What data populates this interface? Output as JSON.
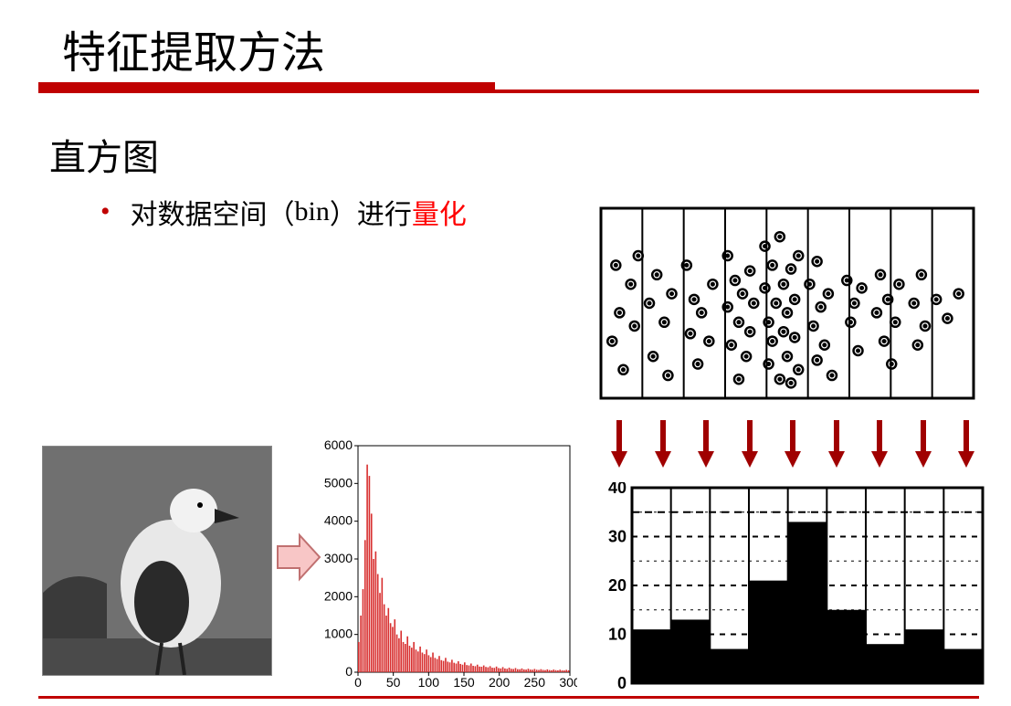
{
  "title": "特征提取方法",
  "subheading": "直方图",
  "bullet": {
    "pre": "对数据空间（",
    "bin": "bin",
    "mid": "）进行",
    "highlight": "量化"
  },
  "colors": {
    "accent": "#c00000",
    "text": "#000000",
    "highlight": "#ff0000",
    "hist_bars": "#d83030",
    "bar_fill": "#000000",
    "grid": "#808080",
    "bg": "#ffffff"
  },
  "red_histogram": {
    "type": "histogram",
    "xlim": [
      0,
      300
    ],
    "ylim": [
      0,
      6000
    ],
    "xtick_step": 50,
    "ytick_step": 1000,
    "label_fontsize": 14,
    "bar_color": "#d83030",
    "bg": "#ffffff",
    "border_color": "#000000",
    "values": [
      800,
      1500,
      2200,
      3500,
      5500,
      5200,
      4200,
      3000,
      3200,
      2600,
      2100,
      2500,
      1800,
      1500,
      1700,
      1300,
      1200,
      1400,
      1000,
      900,
      1100,
      800,
      750,
      950,
      700,
      650,
      800,
      600,
      550,
      680,
      520,
      480,
      600,
      450,
      400,
      520,
      380,
      350,
      430,
      320,
      300,
      380,
      280,
      260,
      330,
      250,
      230,
      290,
      220,
      200,
      260,
      190,
      180,
      230,
      170,
      160,
      200,
      150,
      145,
      180,
      140,
      130,
      160,
      120,
      115,
      150,
      110,
      100,
      135,
      100,
      90,
      120,
      90,
      85,
      110,
      80,
      78,
      100,
      75,
      70,
      92,
      70,
      65,
      86,
      65,
      60,
      80,
      62,
      56,
      75,
      58,
      52,
      70,
      55,
      50,
      66,
      52,
      48,
      62,
      50
    ]
  },
  "scatter_bins": {
    "type": "scatter-binned",
    "bins": 9,
    "border_color": "#000000",
    "bg": "#ffffff",
    "point_color": "#000000",
    "point_radius": 5,
    "points": [
      [
        0.04,
        0.3
      ],
      [
        0.05,
        0.55
      ],
      [
        0.03,
        0.7
      ],
      [
        0.06,
        0.85
      ],
      [
        0.08,
        0.4
      ],
      [
        0.09,
        0.62
      ],
      [
        0.1,
        0.25
      ],
      [
        0.13,
        0.5
      ],
      [
        0.14,
        0.78
      ],
      [
        0.15,
        0.35
      ],
      [
        0.17,
        0.6
      ],
      [
        0.18,
        0.88
      ],
      [
        0.19,
        0.45
      ],
      [
        0.23,
        0.3
      ],
      [
        0.24,
        0.66
      ],
      [
        0.25,
        0.48
      ],
      [
        0.26,
        0.82
      ],
      [
        0.27,
        0.55
      ],
      [
        0.29,
        0.7
      ],
      [
        0.3,
        0.4
      ],
      [
        0.34,
        0.25
      ],
      [
        0.34,
        0.52
      ],
      [
        0.35,
        0.72
      ],
      [
        0.36,
        0.38
      ],
      [
        0.37,
        0.9
      ],
      [
        0.37,
        0.6
      ],
      [
        0.38,
        0.45
      ],
      [
        0.39,
        0.78
      ],
      [
        0.4,
        0.33
      ],
      [
        0.4,
        0.65
      ],
      [
        0.41,
        0.5
      ],
      [
        0.44,
        0.2
      ],
      [
        0.44,
        0.42
      ],
      [
        0.45,
        0.6
      ],
      [
        0.45,
        0.82
      ],
      [
        0.46,
        0.3
      ],
      [
        0.46,
        0.7
      ],
      [
        0.47,
        0.5
      ],
      [
        0.48,
        0.9
      ],
      [
        0.48,
        0.15
      ],
      [
        0.49,
        0.65
      ],
      [
        0.49,
        0.4
      ],
      [
        0.5,
        0.78
      ],
      [
        0.5,
        0.55
      ],
      [
        0.51,
        0.32
      ],
      [
        0.51,
        0.92
      ],
      [
        0.52,
        0.48
      ],
      [
        0.52,
        0.68
      ],
      [
        0.53,
        0.25
      ],
      [
        0.53,
        0.85
      ],
      [
        0.56,
        0.4
      ],
      [
        0.57,
        0.62
      ],
      [
        0.58,
        0.8
      ],
      [
        0.58,
        0.28
      ],
      [
        0.59,
        0.52
      ],
      [
        0.6,
        0.72
      ],
      [
        0.61,
        0.45
      ],
      [
        0.62,
        0.88
      ],
      [
        0.66,
        0.38
      ],
      [
        0.67,
        0.6
      ],
      [
        0.68,
        0.5
      ],
      [
        0.69,
        0.75
      ],
      [
        0.7,
        0.42
      ],
      [
        0.74,
        0.55
      ],
      [
        0.75,
        0.35
      ],
      [
        0.76,
        0.7
      ],
      [
        0.77,
        0.48
      ],
      [
        0.78,
        0.82
      ],
      [
        0.79,
        0.6
      ],
      [
        0.8,
        0.4
      ],
      [
        0.84,
        0.5
      ],
      [
        0.85,
        0.72
      ],
      [
        0.86,
        0.35
      ],
      [
        0.87,
        0.62
      ],
      [
        0.9,
        0.48
      ],
      [
        0.93,
        0.58
      ],
      [
        0.96,
        0.45
      ]
    ]
  },
  "bar_histogram": {
    "type": "bar",
    "bins": 9,
    "ylim": [
      0,
      40
    ],
    "ytick_step": 10,
    "major_dash": 35,
    "label_fontsize": 18,
    "bar_color": "#000000",
    "grid_dash_color": "#000000",
    "bg": "#ffffff",
    "border_color": "#000000",
    "values": [
      11,
      13,
      7,
      21,
      33,
      15,
      8,
      11,
      7
    ]
  },
  "arrows": {
    "count": 9,
    "color": "#a00000",
    "width": 6,
    "head_width": 18,
    "length": 50
  },
  "big_arrow": {
    "fill": "#f8c6c6",
    "stroke": "#c07070"
  }
}
